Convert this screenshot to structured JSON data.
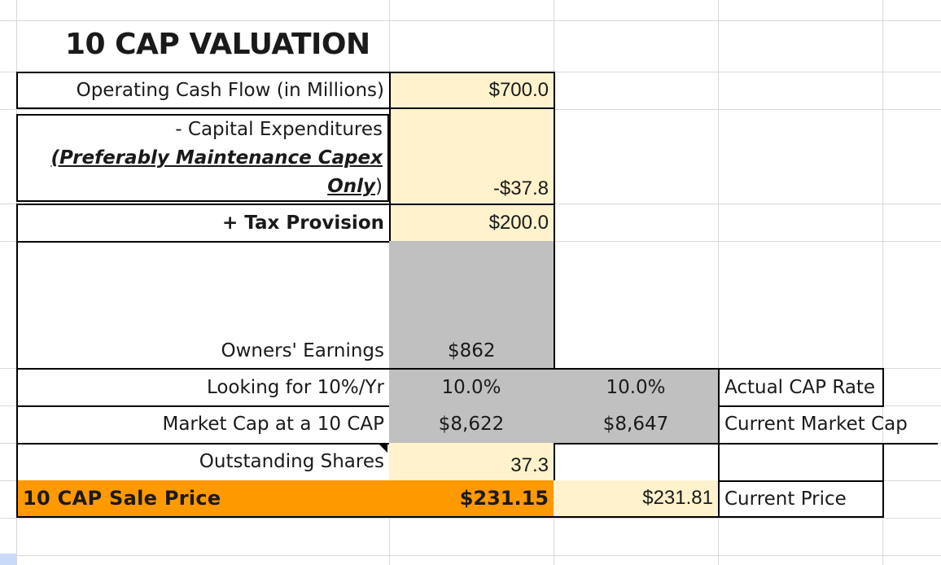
{
  "sheet": {
    "title": "10 CAP VALUATION",
    "rows": {
      "ocf": {
        "label": "Operating Cash Flow (in Millions)",
        "value": "$700.0"
      },
      "capex": {
        "label_line1": "- Capital Expenditures",
        "label_line2": "(Preferably Maintenance Capex",
        "label_line3_u": "Only",
        "label_line3_rest": ")",
        "value": "-$37.8"
      },
      "tax": {
        "label": "+ Tax Provision",
        "value": "$200.0"
      },
      "owners": {
        "label": "Owners' Earnings",
        "value": "$862"
      },
      "looking": {
        "label": "Looking for 10%/Yr",
        "value": "10.0%",
        "actual_value": "10.0%",
        "actual_label": "Actual CAP Rate"
      },
      "mcap": {
        "label": "Market Cap at a 10 CAP",
        "value": "$8,622",
        "current_value": "$8,647",
        "current_label": "Current Market Cap"
      },
      "shares": {
        "label": "Outstanding Shares",
        "value": "37.3"
      },
      "sale": {
        "label": "10 CAP Sale Price",
        "value": "$231.15",
        "current_value": "$231.81",
        "current_label": "Current Price"
      }
    }
  },
  "colors": {
    "input_fill": "#fff2cc",
    "calc_fill": "#c0c0c0",
    "highlight_fill": "#ff9900",
    "gridline": "#d9d9d9"
  }
}
